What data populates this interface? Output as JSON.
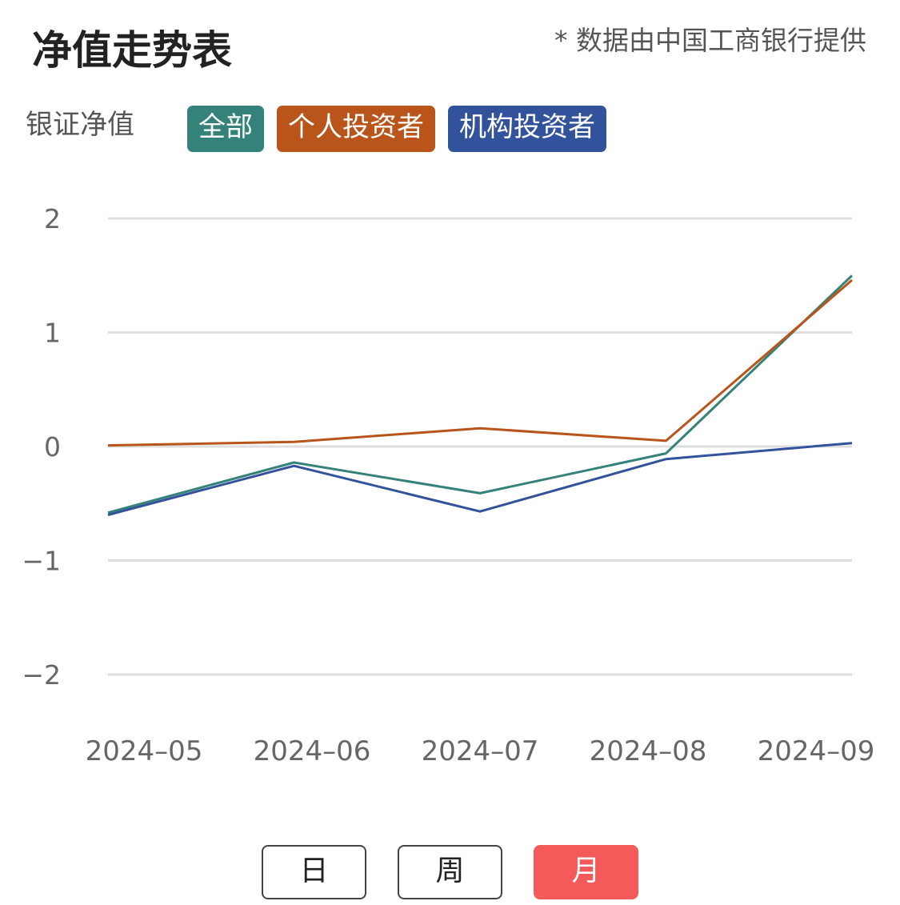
{
  "header": {
    "title": "净值走势表",
    "source_note": "* 数据由中国工商银行提供"
  },
  "metric_label": "银证净值",
  "filters": [
    {
      "label": "全部",
      "color": "#34827a"
    },
    {
      "label": "个人投资者",
      "color": "#b9541b"
    },
    {
      "label": "机构投资者",
      "color": "#33529c"
    }
  ],
  "period_buttons": [
    {
      "label": "日",
      "active": false
    },
    {
      "label": "周",
      "active": false
    },
    {
      "label": "月",
      "active": true
    }
  ],
  "chart_data": {
    "type": "line",
    "x": [
      "2024–05",
      "2024–06",
      "2024–07",
      "2024–08",
      "2024–09"
    ],
    "yticks": [
      "2",
      "1",
      "0",
      "−1",
      "−2"
    ],
    "ylim": [
      -2,
      2
    ],
    "grid": true,
    "series": [
      {
        "name": "全部",
        "color": "#34827a",
        "values": [
          -0.58,
          -0.14,
          -0.41,
          -0.06,
          1.5
        ]
      },
      {
        "name": "个人投资者",
        "color": "#b9541b",
        "values": [
          0.01,
          0.04,
          0.16,
          0.05,
          1.46
        ]
      },
      {
        "name": "机构投资者",
        "color": "#33529c",
        "values": [
          -0.6,
          -0.17,
          -0.57,
          -0.11,
          0.03
        ]
      }
    ]
  }
}
